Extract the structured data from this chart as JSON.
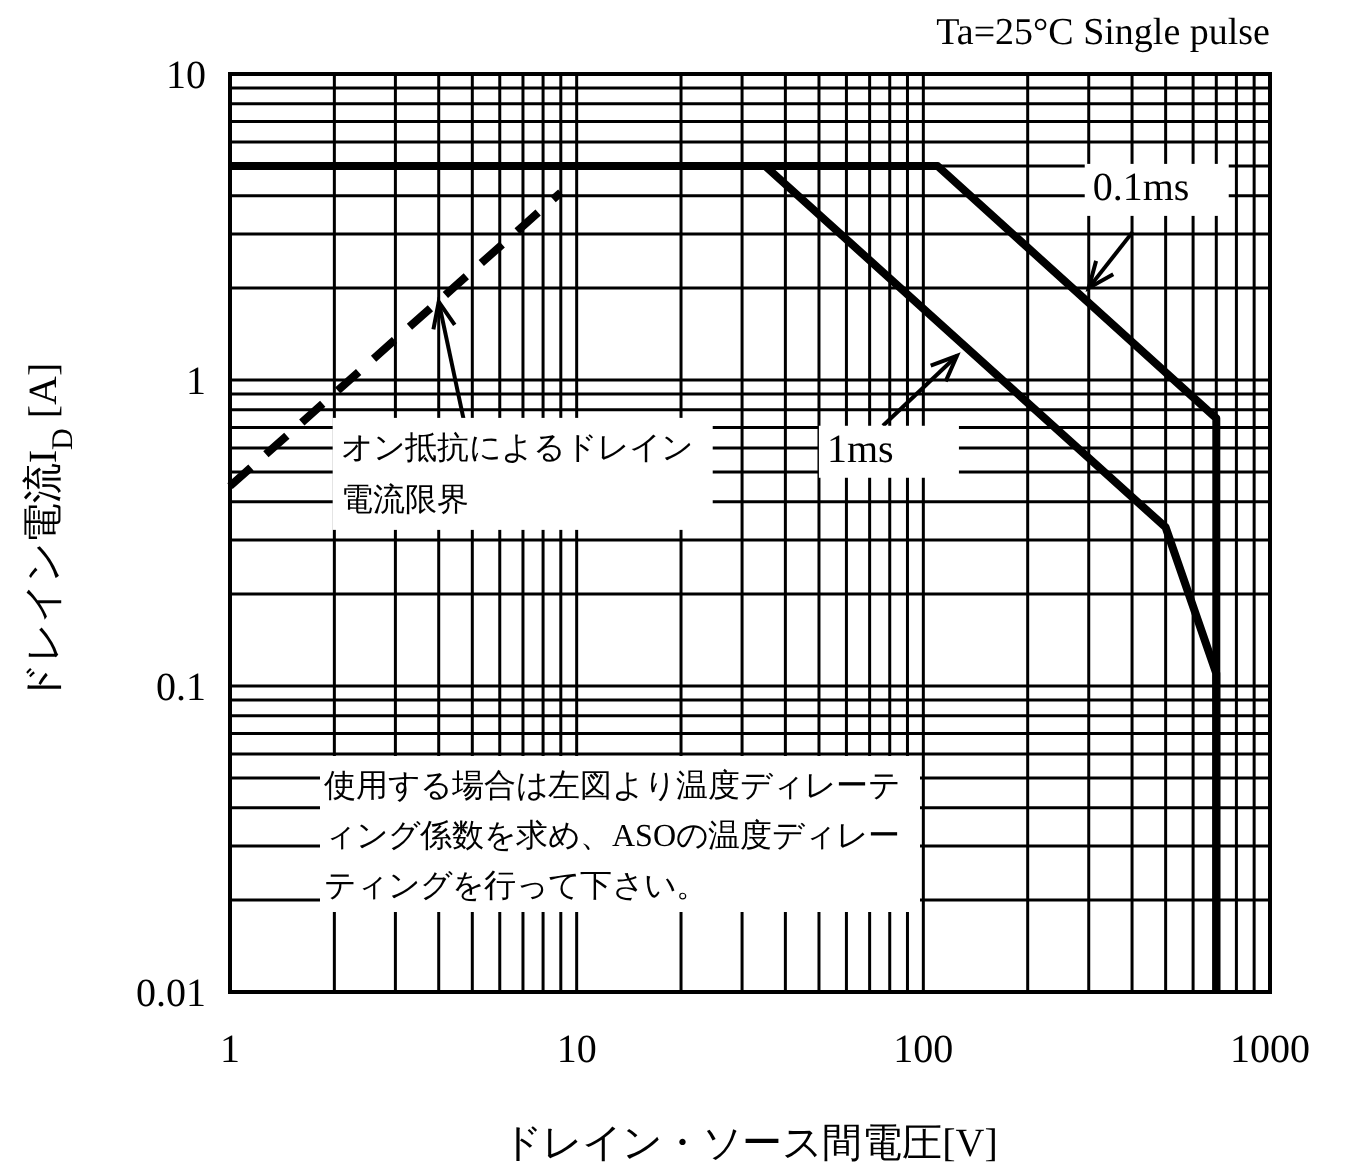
{
  "chart_data": {
    "type": "line",
    "title": "Ta=25°C Single pulse",
    "xlabel": "ドレイン・ソース間電圧[V]",
    "ylabel": "ドレイン電流I$_{D}$  [A]",
    "log": "xy",
    "grid": true,
    "xlim": [
      1,
      1000
    ],
    "ylim": [
      0.01,
      10
    ],
    "xticks": [
      1,
      10,
      100,
      1000
    ],
    "yticks": [
      0.01,
      0.1,
      1,
      10
    ],
    "series": [
      {
        "color": "#000000",
        "line_style": "dashed",
        "x": [
          1,
          9
        ],
        "values": [
          0.45,
          4.1
        ]
      },
      {
        "color": "#000000",
        "line_style": "solid",
        "x": [
          1,
          35,
          500,
          700,
          700
        ],
        "values": [
          5,
          5,
          0.33,
          0.11,
          0.01
        ]
      },
      {
        "color": "#000000",
        "line_style": "solid",
        "x": [
          1,
          110,
          700,
          700
        ],
        "values": [
          5,
          5,
          0.75,
          0.01
        ]
      }
    ],
    "annotations": [
      {
        "text": "0.1ms",
        "x": 300,
        "y": 2.0
      },
      {
        "text": "1ms",
        "x": 125,
        "y": 1.2
      },
      {
        "text": "オン抵抗によるドレイン電流限界",
        "x": 4,
        "y": 1.8
      },
      "使用する場合は左図より温度ディレーティング係数を求め、ASOの温度ディレーティングを行って下さい。"
    ]
  }
}
